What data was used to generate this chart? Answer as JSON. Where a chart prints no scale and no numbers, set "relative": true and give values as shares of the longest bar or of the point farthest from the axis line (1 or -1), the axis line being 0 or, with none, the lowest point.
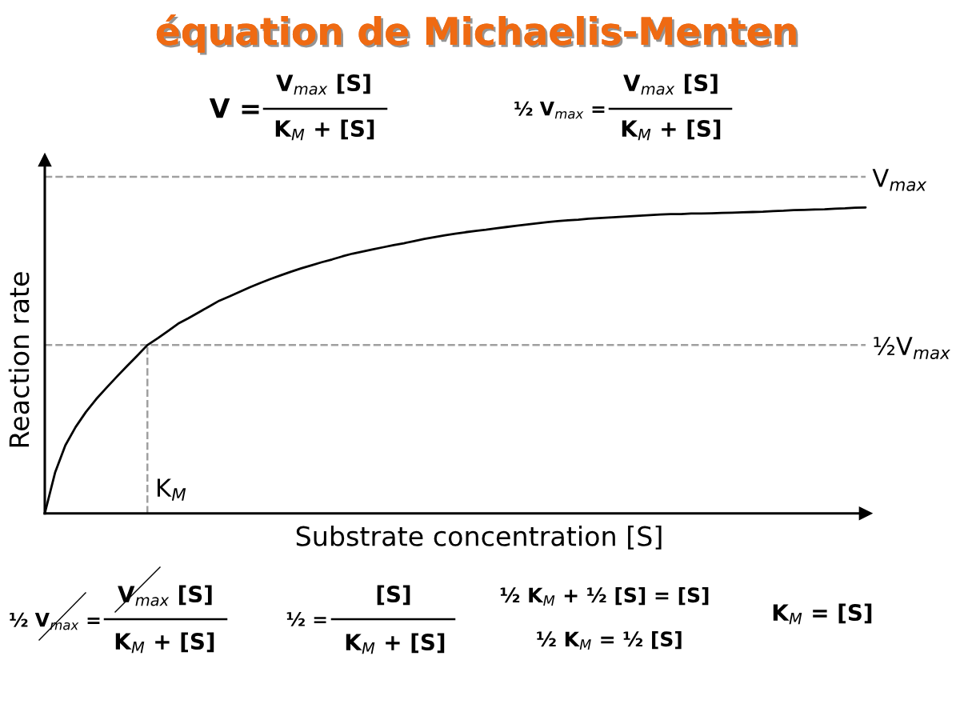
{
  "chart_data": {
    "type": "line",
    "title": "équation de Michaelis-Menten",
    "xlabel": "Substrate concentration [S]",
    "ylabel": "Reaction rate",
    "relative": true,
    "tick_labels": false,
    "categories": [
      null,
      null,
      null,
      null,
      null,
      null,
      null,
      null,
      null,
      null,
      null,
      null,
      null,
      null,
      null,
      null,
      null,
      null,
      null,
      null,
      null,
      null,
      null,
      null,
      null,
      null,
      null,
      null,
      null,
      null,
      null,
      null,
      null,
      null,
      null,
      null,
      null,
      null,
      null,
      null,
      null,
      null,
      null,
      null,
      null,
      null,
      null,
      null,
      null,
      null,
      null,
      null,
      null,
      null,
      null,
      null,
      null,
      null,
      null,
      null,
      null,
      null,
      null,
      null,
      null,
      null,
      null,
      null,
      null,
      null,
      null,
      null,
      null,
      null,
      null,
      null,
      null,
      null,
      null,
      null,
      null
    ],
    "series": [
      {
        "color": "#000000",
        "values": [
          0,
          0.133,
          0.222,
          0.282,
          0.331,
          0.373,
          0.41,
          0.446,
          0.481,
          0.515,
          0.55,
          0.572,
          0.596,
          0.62,
          0.638,
          0.657,
          0.676,
          0.695,
          0.709,
          0.724,
          0.739,
          0.753,
          0.766,
          0.778,
          0.79,
          0.801,
          0.811,
          0.821,
          0.83,
          0.84,
          0.849,
          0.856,
          0.863,
          0.87,
          0.877,
          0.883,
          0.89,
          0.897,
          0.903,
          0.909,
          0.914,
          0.919,
          0.923,
          0.927,
          0.932,
          0.936,
          0.94,
          0.944,
          0.948,
          0.952,
          0.955,
          0.958,
          0.96,
          0.963,
          0.965,
          0.967,
          0.969,
          0.971,
          0.973,
          0.975,
          0.977,
          0.978,
          0.978,
          0.98,
          0.98,
          0.981,
          0.982,
          0.983,
          0.984,
          0.985,
          0.986,
          0.988,
          0.989,
          0.991,
          0.992,
          0.993,
          0.994,
          0.996,
          0.997,
          0.999,
          1.0
        ]
      }
    ],
    "ref_lines": [
      {
        "axis": "y",
        "value": 1.1,
        "label": "V$_{max}$",
        "color": "#a0a0a0",
        "line_style": "dashed"
      },
      {
        "axis": "y",
        "value": 0.55,
        "label": "½V$_{max}$",
        "color": "#a0a0a0",
        "line_style": "dashed"
      }
    ],
    "annotations": [
      "V =",
      "V$_{max}$ [S]",
      "K$_{M}$ + [S]",
      "½ V$_{max}$ =",
      "V$_{max}$ [S]",
      "K$_{M}$ + [S]",
      "½ V$_{max}$ =",
      "V$_{max}$ [S]",
      "K$_{M}$ + [S]",
      "½ =",
      "[S]",
      "K$_{M}$ + [S]",
      "½ K$_{M}$ + ½ [S] = [S]",
      "½ K$_{M}$ = ½ [S]",
      "K$_{M}$ = [S]",
      "K$_{M}$"
    ]
  }
}
